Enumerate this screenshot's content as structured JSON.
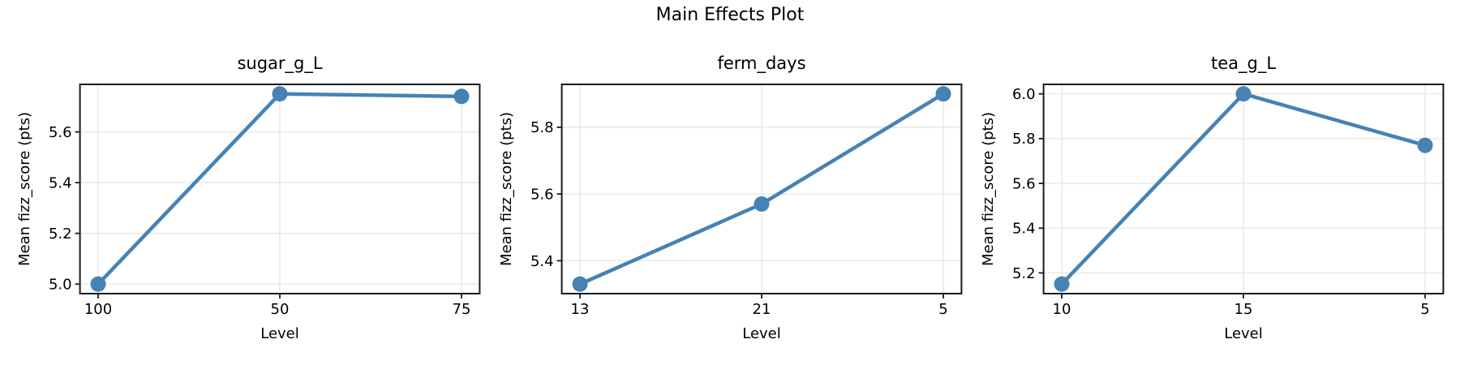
{
  "figure": {
    "suptitle": "Main Effects Plot",
    "background": "#ffffff",
    "line_color": "#4682b4",
    "marker_color": "#4682b4",
    "grid_color": "#e7e7e7",
    "spine_color": "#1a1a1a",
    "tick_color": "#1a1a1a",
    "text_color": "#000000",
    "legend": "none",
    "grid": "on"
  },
  "chart_data": [
    {
      "type": "line",
      "title": "sugar_g_L",
      "xlabel": "Level",
      "ylabel": "Mean fizz_score (pts)",
      "categories": [
        "100",
        "50",
        "75"
      ],
      "values": [
        5.0,
        5.75,
        5.74
      ],
      "yticks": [
        "5.0",
        "5.2",
        "5.4",
        "5.6"
      ],
      "ytick_values": [
        5.0,
        5.2,
        5.4,
        5.6
      ],
      "ylim": [
        4.9625,
        5.7875
      ],
      "grid": true,
      "marker": "circle"
    },
    {
      "type": "line",
      "title": "ferm_days",
      "xlabel": "Level",
      "ylabel": "Mean fizz_score (pts)",
      "categories": [
        "13",
        "21",
        "5"
      ],
      "values": [
        5.33,
        5.57,
        5.9
      ],
      "yticks": [
        "5.4",
        "5.6",
        "5.8"
      ],
      "ytick_values": [
        5.4,
        5.6,
        5.8
      ],
      "ylim": [
        5.3015,
        5.9285
      ],
      "grid": true,
      "marker": "circle"
    },
    {
      "type": "line",
      "title": "tea_g_L",
      "xlabel": "Level",
      "ylabel": "Mean fizz_score (pts)",
      "categories": [
        "10",
        "15",
        "5"
      ],
      "values": [
        5.15,
        6.0,
        5.77
      ],
      "yticks": [
        "5.2",
        "5.4",
        "5.6",
        "5.8",
        "6.0"
      ],
      "ytick_values": [
        5.2,
        5.4,
        5.6,
        5.8,
        6.0
      ],
      "ylim": [
        5.1075,
        6.0425
      ],
      "grid": true,
      "marker": "circle"
    }
  ]
}
